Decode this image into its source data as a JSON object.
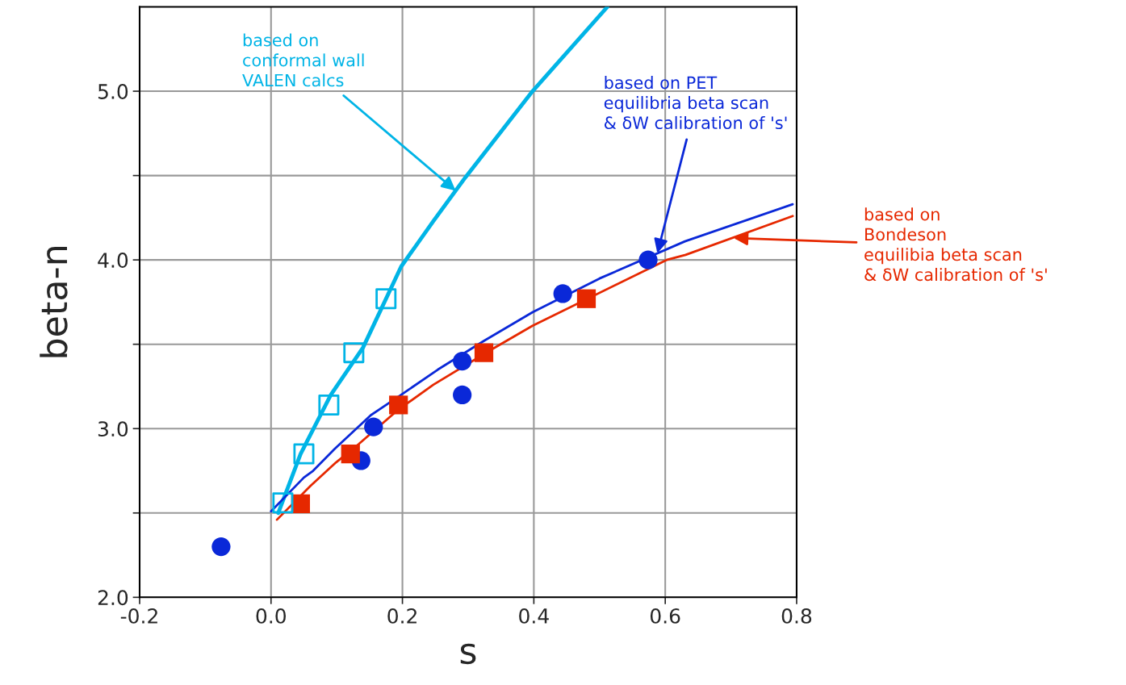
{
  "chart_data": {
    "type": "scatter",
    "xlabel": "s",
    "ylabel": "beta-n",
    "xlim": [
      -0.2,
      0.8
    ],
    "xticks": [
      {
        "value": -0.2,
        "label": "-0.2"
      },
      {
        "value": 0,
        "label": "0.0"
      },
      {
        "value": 0.2,
        "label": "0.2"
      },
      {
        "value": 0.4,
        "label": "0.4"
      },
      {
        "value": 0.6,
        "label": "0.6"
      },
      {
        "value": 0.8,
        "label": "0.8"
      }
    ],
    "ylim": [
      2.0,
      5.5
    ],
    "yticks": [
      {
        "value": 2.0,
        "label": "2.0"
      },
      {
        "value": 2.5,
        "label": null
      },
      {
        "value": 3.0,
        "label": "3.0"
      },
      {
        "value": 3.5,
        "label": null
      },
      {
        "value": 4.0,
        "label": "4.0"
      },
      {
        "value": 4.5,
        "label": null
      },
      {
        "value": 5.0,
        "label": "5.0"
      }
    ],
    "grid": true,
    "legend": false,
    "series": [
      {
        "type": "line",
        "color": "#00b4e6",
        "x": [
          0.011,
          0.045,
          0.091,
          0.14,
          0.198,
          0.247,
          0.296,
          0.398,
          0.512
        ],
        "values": [
          2.5,
          2.85,
          3.2,
          3.48,
          3.96,
          4.23,
          4.49,
          5.0,
          5.5
        ]
      },
      {
        "type": "line",
        "color": "#0a28d8",
        "x": [
          0.0,
          0.05,
          0.064,
          0.097,
          0.152,
          0.198,
          0.254,
          0.324,
          0.398,
          0.5,
          0.63,
          0.794
        ],
        "values": [
          2.51,
          2.71,
          2.75,
          2.88,
          3.08,
          3.2,
          3.35,
          3.52,
          3.69,
          3.89,
          4.11,
          4.33
        ]
      },
      {
        "type": "line",
        "color": "#e62800",
        "x": [
          0.009,
          0.06,
          0.099,
          0.134,
          0.193,
          0.247,
          0.336,
          0.398,
          0.602,
          0.631,
          0.794
        ],
        "values": [
          2.46,
          2.66,
          2.8,
          2.91,
          3.11,
          3.26,
          3.47,
          3.61,
          4.0,
          4.03,
          4.26
        ]
      },
      {
        "marker": "circle",
        "color": "#0a28d8",
        "x": [
          -0.076,
          0.137,
          0.156,
          0.291,
          0.291,
          0.444,
          0.574
        ],
        "values": [
          2.3,
          2.81,
          3.01,
          3.4,
          3.2,
          3.8,
          4.0
        ]
      },
      {
        "marker": "square",
        "color": "#e62800",
        "x": [
          0.045,
          0.121,
          0.194,
          0.324,
          0.48
        ],
        "values": [
          2.555,
          2.85,
          3.14,
          3.45,
          3.77
        ]
      },
      {
        "marker": "square",
        "color": "#00b4e6",
        "x": [
          0.018,
          0.05,
          0.088,
          0.126,
          0.175
        ],
        "values": [
          2.56,
          2.85,
          3.14,
          3.45,
          3.77
        ]
      }
    ],
    "annotations": [
      {
        "text": "based on\nconformal wall\nVALEN calcs",
        "x": 0.281,
        "y": 4.41
      },
      {
        "text": "based on PET\nequilibria beta scan\n& δW calibration of 's'",
        "x": 0.588,
        "y": 4.04
      },
      {
        "text": "based on\nBondeson\nequilibia beta scan\n& δW calibration of 's'",
        "x": 0.704,
        "y": 4.13
      }
    ]
  }
}
